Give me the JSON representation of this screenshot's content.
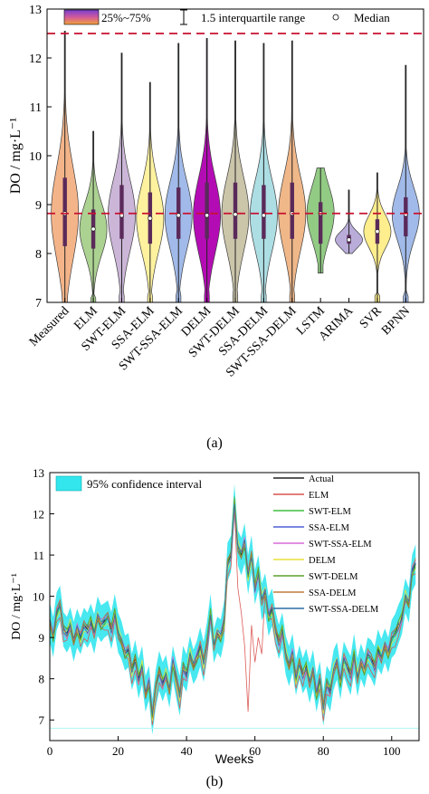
{
  "panel_a": {
    "caption": "(a)",
    "legend": {
      "box_label": "25%~75%",
      "whisker_label": "1.5 interquartile range",
      "median_label": "Median"
    }
  },
  "panel_b": {
    "caption": "(b)",
    "legend_ci": "95% confidence interval"
  },
  "chart_data": [
    {
      "type": "violin",
      "ylabel": "DO / mg·L⁻¹",
      "xlabel": "",
      "ylim": [
        7,
        13
      ],
      "yticks": [
        "7",
        "8",
        "9",
        "10",
        "11",
        "12",
        "13"
      ],
      "reference_lines": [
        12.5,
        8.82
      ],
      "grid": false,
      "categories": [
        "Measured",
        "ELM",
        "SWT-ELM",
        "SSA-ELM",
        "SWT-SSA-ELM",
        "DELM",
        "SWT-DELM",
        "SSA-DELM",
        "SWT-SSA-DELM",
        "LSTM",
        "ARIMA",
        "SVR",
        "BPNN"
      ],
      "colors": [
        "#f4b183",
        "#a8d08d",
        "#c9b3d6",
        "#fff29a",
        "#9db7e8",
        "#b000b0",
        "#c9c2a6",
        "#a8dde3",
        "#f0b483",
        "#8dc97e",
        "#b6a8d8",
        "#ffee88",
        "#9db7e8"
      ],
      "stats": [
        {
          "min": 7.0,
          "q1": 8.15,
          "median": 8.82,
          "q3": 9.55,
          "max": 12.55
        },
        {
          "min": 7.0,
          "q1": 8.1,
          "median": 8.5,
          "q3": 8.9,
          "max": 10.5
        },
        {
          "min": 7.0,
          "q1": 8.3,
          "median": 8.78,
          "q3": 9.4,
          "max": 12.1
        },
        {
          "min": 7.0,
          "q1": 8.2,
          "median": 8.72,
          "q3": 9.25,
          "max": 11.5
        },
        {
          "min": 7.0,
          "q1": 8.3,
          "median": 8.78,
          "q3": 9.35,
          "max": 12.3
        },
        {
          "min": 7.0,
          "q1": 8.3,
          "median": 8.78,
          "q3": 9.45,
          "max": 12.4
        },
        {
          "min": 7.0,
          "q1": 8.3,
          "median": 8.8,
          "q3": 9.45,
          "max": 12.35
        },
        {
          "min": 7.0,
          "q1": 8.3,
          "median": 8.78,
          "q3": 9.4,
          "max": 12.3
        },
        {
          "min": 7.0,
          "q1": 8.3,
          "median": 8.82,
          "q3": 9.45,
          "max": 12.35
        },
        {
          "min": 7.6,
          "q1": 8.2,
          "median": 8.82,
          "q3": 9.05,
          "max": 9.75
        },
        {
          "min": 8.0,
          "q1": 8.2,
          "median": 8.28,
          "q3": 8.38,
          "max": 9.3
        },
        {
          "min": 7.0,
          "q1": 8.2,
          "median": 8.45,
          "q3": 8.7,
          "max": 9.65
        },
        {
          "min": 7.0,
          "q1": 8.35,
          "median": 8.8,
          "q3": 9.15,
          "max": 11.85
        }
      ]
    },
    {
      "type": "line",
      "xlabel": "Weeks",
      "ylabel": "DO / mg·L⁻¹",
      "xlim": [
        0,
        108
      ],
      "ylim": [
        6.5,
        13
      ],
      "xticks": [
        "0",
        "20",
        "40",
        "60",
        "80",
        "100"
      ],
      "yticks": [
        "7",
        "8",
        "9",
        "10",
        "11",
        "12",
        "13"
      ],
      "ci_color": "#33e6ee",
      "x": [
        0,
        1,
        2,
        3,
        4,
        5,
        6,
        7,
        8,
        9,
        10,
        11,
        12,
        13,
        14,
        15,
        16,
        17,
        18,
        19,
        20,
        21,
        22,
        23,
        24,
        25,
        26,
        27,
        28,
        29,
        30,
        31,
        32,
        33,
        34,
        35,
        36,
        37,
        38,
        39,
        40,
        41,
        42,
        43,
        44,
        45,
        46,
        47,
        48,
        49,
        50,
        51,
        52,
        53,
        54,
        55,
        56,
        57,
        58,
        59,
        60,
        61,
        62,
        63,
        64,
        65,
        66,
        67,
        68,
        69,
        70,
        71,
        72,
        73,
        74,
        75,
        76,
        77,
        78,
        79,
        80,
        81,
        82,
        83,
        84,
        85,
        86,
        87,
        88,
        89,
        90,
        91,
        92,
        93,
        94,
        95,
        96,
        97,
        98,
        99,
        100,
        101,
        102,
        103,
        104,
        105,
        106,
        107
      ],
      "actual": [
        9.4,
        9.0,
        9.6,
        9.8,
        9.2,
        9.1,
        9.3,
        8.9,
        9.2,
        9.0,
        9.3,
        9.2,
        9.4,
        9.1,
        9.5,
        9.3,
        9.4,
        9.5,
        9.2,
        9.6,
        9.1,
        8.9,
        8.6,
        8.7,
        8.2,
        8.5,
        8.0,
        8.3,
        7.6,
        7.9,
        7.1,
        7.8,
        8.2,
        7.9,
        8.1,
        7.7,
        8.4,
        8.0,
        7.6,
        8.3,
        8.1,
        8.6,
        8.3,
        8.5,
        8.8,
        8.4,
        8.9,
        9.6,
        8.8,
        9.1,
        9.0,
        9.4,
        10.8,
        11.0,
        12.3,
        11.2,
        11.0,
        11.3,
        10.5,
        11.0,
        10.2,
        10.6,
        9.9,
        10.1,
        9.5,
        9.7,
        9.2,
        8.9,
        9.2,
        8.6,
        8.3,
        8.6,
        8.0,
        8.4,
        8.1,
        8.3,
        7.9,
        8.2,
        7.6,
        8.0,
        7.3,
        7.9,
        7.7,
        8.2,
        8.4,
        7.9,
        8.5,
        8.3,
        8.1,
        8.6,
        8.0,
        8.4,
        8.2,
        8.6,
        8.5,
        8.3,
        8.7,
        8.5,
        8.8,
        8.6,
        9.0,
        9.1,
        9.3,
        9.5,
        10.0,
        9.8,
        10.6,
        10.8
      ],
      "series": [
        {
          "name": "Actual",
          "color": "#222222"
        },
        {
          "name": "ELM",
          "color": "#d9534f"
        },
        {
          "name": "SWT-ELM",
          "color": "#3fbf3f"
        },
        {
          "name": "SSA-ELM",
          "color": "#4f5fd5"
        },
        {
          "name": "SWT-SSA-ELM",
          "color": "#d86ad8"
        },
        {
          "name": "DELM",
          "color": "#e9e23a"
        },
        {
          "name": "SWT-DELM",
          "color": "#5aa02c"
        },
        {
          "name": "SSA-DELM",
          "color": "#c07a3a"
        },
        {
          "name": "SWT-SSA-DELM",
          "color": "#2f6fa5"
        }
      ],
      "elm_spike_x": [
        55,
        56,
        57,
        58,
        59,
        60,
        61,
        62
      ],
      "elm_spike_y": [
        10.2,
        9.6,
        8.8,
        7.2,
        9.3,
        8.4,
        9.0,
        8.6
      ]
    }
  ]
}
